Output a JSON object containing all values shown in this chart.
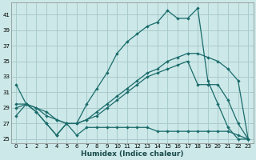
{
  "xlabel": "Humidex (Indice chaleur)",
  "bg_color": "#cce8e8",
  "grid_color": "#aacccc",
  "line_color": "#1a6b6b",
  "xlim": [
    -0.5,
    23.5
  ],
  "ylim": [
    24.5,
    42.5
  ],
  "yticks": [
    25,
    27,
    29,
    31,
    33,
    35,
    37,
    39,
    41
  ],
  "xticks": [
    0,
    1,
    2,
    3,
    4,
    5,
    6,
    7,
    8,
    9,
    10,
    11,
    12,
    13,
    14,
    15,
    16,
    17,
    18,
    19,
    20,
    21,
    22,
    23
  ],
  "curve1_x": [
    0,
    1,
    2,
    3,
    4,
    5,
    6,
    7,
    8,
    9,
    10,
    11,
    12,
    13,
    14,
    15,
    16,
    17,
    18,
    19,
    20,
    21,
    22,
    23
  ],
  "curve1_y": [
    32,
    29.5,
    28.5,
    27,
    25.5,
    27,
    27,
    29.5,
    31.5,
    33.5,
    36.0,
    37.5,
    38.5,
    39.5,
    40.0,
    41.5,
    40.5,
    40.5,
    41.8,
    32.5,
    29.5,
    26.5,
    25.0,
    25.0
  ],
  "curve2_x": [
    0,
    1,
    2,
    3,
    4,
    5,
    6,
    7,
    8,
    9,
    10,
    11,
    12,
    13,
    14,
    15,
    16,
    17,
    18,
    19,
    20,
    21,
    22,
    23
  ],
  "curve2_y": [
    29.5,
    29.5,
    29.0,
    28.5,
    27.5,
    27.0,
    27.0,
    27.5,
    28.5,
    29.5,
    30.5,
    31.5,
    32.5,
    33.5,
    34.0,
    35.0,
    35.5,
    36.0,
    36.0,
    35.5,
    35.0,
    34.0,
    32.5,
    25.0
  ],
  "curve3_x": [
    0,
    1,
    2,
    3,
    4,
    5,
    6,
    7,
    8,
    9,
    10,
    11,
    12,
    13,
    14,
    15,
    16,
    17,
    18,
    19,
    20,
    21,
    22,
    23
  ],
  "curve3_y": [
    29.0,
    29.5,
    29.0,
    28.0,
    27.5,
    27.0,
    27.0,
    27.5,
    28.0,
    29.0,
    30.0,
    31.0,
    32.0,
    33.0,
    33.5,
    34.0,
    34.5,
    35.0,
    32.0,
    32.0,
    32.0,
    30.0,
    27.0,
    25.0
  ],
  "curve4_x": [
    0,
    1,
    2,
    3,
    4,
    5,
    6,
    7,
    8,
    9,
    10,
    11,
    12,
    13,
    14,
    15,
    16,
    17,
    18,
    19,
    20,
    21,
    22,
    23
  ],
  "curve4_y": [
    28.0,
    29.5,
    28.5,
    27.0,
    25.5,
    27.0,
    25.5,
    26.5,
    26.5,
    26.5,
    26.5,
    26.5,
    26.5,
    26.5,
    26.0,
    26.0,
    26.0,
    26.0,
    26.0,
    26.0,
    26.0,
    26.0,
    25.5,
    25.0
  ]
}
